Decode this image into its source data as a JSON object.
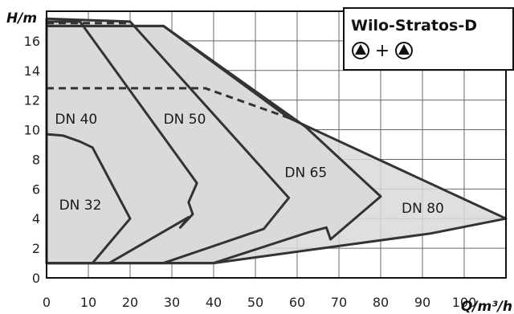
{
  "chart_data": {
    "type": "area",
    "title": "Wilo-Stratos-D",
    "legend_text": "+",
    "legend_icon": "pump-symbol-icon",
    "xlabel": "Q/m³/h",
    "ylabel": "H/m",
    "xlim": [
      0,
      110
    ],
    "ylim": [
      0,
      18
    ],
    "x_ticks": [
      "0",
      "10",
      "20",
      "30",
      "40",
      "50",
      "60",
      "70",
      "80",
      "90",
      "100"
    ],
    "y_ticks": [
      "0",
      "2",
      "4",
      "6",
      "8",
      "10",
      "12",
      "14",
      "16"
    ],
    "grid": true,
    "fill_color": "#d9d9d9",
    "line_color": "#333333",
    "series": [
      {
        "name": "DN 32",
        "label_at": [
          3,
          4.6
        ],
        "points": [
          [
            0,
            9.7
          ],
          [
            4,
            9.6
          ],
          [
            8,
            9.2
          ],
          [
            11,
            8.8
          ],
          [
            20,
            4
          ],
          [
            11,
            1
          ],
          [
            0,
            1
          ]
        ]
      },
      {
        "name": "DN 40",
        "label_at": [
          2,
          10.4
        ],
        "points": [
          [
            0,
            17.3
          ],
          [
            8,
            17.3
          ],
          [
            36,
            6.4
          ],
          [
            34,
            5.1
          ],
          [
            35,
            4.3
          ],
          [
            32,
            3.4
          ],
          [
            34,
            4.1
          ],
          [
            15,
            1
          ],
          [
            0,
            1
          ]
        ]
      },
      {
        "name": "DN 50",
        "label_at": [
          28,
          10.4
        ],
        "points": [
          [
            0,
            17.5
          ],
          [
            20,
            17.3
          ],
          [
            58,
            5.4
          ],
          [
            52,
            3.3
          ],
          [
            28,
            1
          ],
          [
            0,
            1
          ]
        ]
      },
      {
        "name": "DN 65",
        "label_at": [
          57,
          6.8
        ],
        "points": [
          [
            0,
            17
          ],
          [
            28,
            17
          ],
          [
            62,
            10.2
          ],
          [
            80,
            5.5
          ],
          [
            68,
            2.6
          ],
          [
            67,
            3.4
          ],
          [
            63,
            3.1
          ],
          [
            40,
            1
          ],
          [
            0,
            1
          ]
        ]
      },
      {
        "name": "DN 80",
        "label_at": [
          85,
          4.4
        ],
        "points": [
          [
            0,
            17
          ],
          [
            28,
            17
          ],
          [
            58,
            10.8
          ],
          [
            110,
            4
          ],
          [
            92,
            3
          ],
          [
            40,
            1
          ],
          [
            0,
            1
          ]
        ]
      }
    ],
    "dashed_lines": [
      {
        "points": [
          [
            0,
            17.2
          ],
          [
            20,
            17.2
          ]
        ]
      },
      {
        "points": [
          [
            0,
            12.8
          ],
          [
            38,
            12.8
          ],
          [
            58,
            10.8
          ]
        ]
      }
    ]
  }
}
